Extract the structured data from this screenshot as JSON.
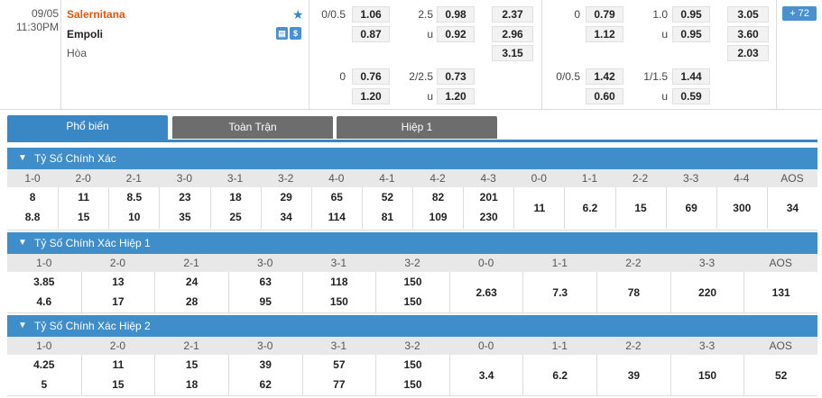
{
  "match": {
    "date": "09/05",
    "time": "11:30PM",
    "home": "Salernitana",
    "away": "Empoli",
    "draw": "Hòa",
    "more_count": "72"
  },
  "odds": {
    "hdp_line1": "0/0.5",
    "hdp_home1": "1.06",
    "hdp_away1": "0.87",
    "ou_line1": "2.5",
    "ou_over1": "0.98",
    "ou_u1": "u",
    "ou_under1": "0.92",
    "x12_1": "2.37",
    "x12_2": "2.96",
    "x12_x": "3.15",
    "h1_hdp_line1": "0",
    "h1_hdp_home1": "0.79",
    "h1_hdp_away1": "1.12",
    "h1_ou_line1": "1.0",
    "h1_ou_over1": "0.95",
    "h1_ou_u1": "u",
    "h1_ou_under1": "0.95",
    "h1_x12_1": "3.05",
    "h1_x12_2": "3.60",
    "h1_x12_x": "2.03",
    "hdp_line2": "0",
    "hdp_home2": "0.76",
    "hdp_away2": "1.20",
    "ou_line2": "2/2.5",
    "ou_over2": "0.73",
    "ou_u2": "u",
    "ou_under2": "1.20",
    "h1_hdp_line2": "0/0.5",
    "h1_hdp_home2": "1.42",
    "h1_hdp_away2": "0.60",
    "h1_ou_line2": "1/1.5",
    "h1_ou_over2": "1.44",
    "h1_ou_u2": "u",
    "h1_ou_under2": "0.59"
  },
  "tabs": [
    "Phổ biến",
    "Toàn Trận",
    "Hiệp 1"
  ],
  "sections": [
    {
      "title": "Tỷ Số Chính Xác",
      "headers": [
        "1-0",
        "2-0",
        "2-1",
        "3-0",
        "3-1",
        "3-2",
        "4-0",
        "4-1",
        "4-2",
        "4-3",
        "0-0",
        "1-1",
        "2-2",
        "3-3",
        "4-4",
        "AOS"
      ],
      "home": [
        "8",
        "11",
        "8.5",
        "23",
        "18",
        "29",
        "65",
        "52",
        "82",
        "201",
        "11",
        "6.2",
        "15",
        "69",
        "300",
        "34"
      ],
      "away": [
        "8.8",
        "15",
        "10",
        "35",
        "25",
        "34",
        "114",
        "81",
        "109",
        "230",
        "",
        "",
        "",
        "",
        "",
        ""
      ]
    },
    {
      "title": "Tỷ Số Chính Xác Hiệp 1",
      "headers": [
        "1-0",
        "2-0",
        "2-1",
        "3-0",
        "3-1",
        "3-2",
        "0-0",
        "1-1",
        "2-2",
        "3-3",
        "AOS"
      ],
      "home": [
        "3.85",
        "13",
        "24",
        "63",
        "118",
        "150",
        "2.63",
        "7.3",
        "78",
        "220",
        "131"
      ],
      "away": [
        "4.6",
        "17",
        "28",
        "95",
        "150",
        "150",
        "",
        "",
        "",
        "",
        ""
      ]
    },
    {
      "title": "Tỷ Số Chính Xác Hiệp 2",
      "headers": [
        "1-0",
        "2-0",
        "2-1",
        "3-0",
        "3-1",
        "3-2",
        "0-0",
        "1-1",
        "2-2",
        "3-3",
        "AOS"
      ],
      "home": [
        "4.25",
        "11",
        "15",
        "39",
        "57",
        "150",
        "3.4",
        "6.2",
        "39",
        "150",
        "52"
      ],
      "away": [
        "5",
        "15",
        "18",
        "62",
        "77",
        "150",
        "",
        "",
        "",
        "",
        ""
      ]
    }
  ]
}
